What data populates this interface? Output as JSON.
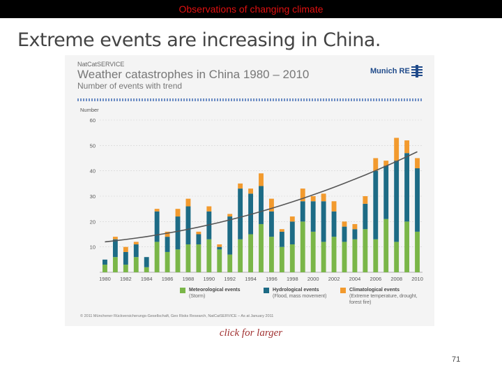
{
  "header": {
    "title": "Observations of changing climate"
  },
  "slide": {
    "heading": "Extreme events are increasing in China.",
    "link_text": "click for larger",
    "page_number": "71"
  },
  "figure": {
    "brand": "NatCatSERVICE",
    "title": "Weather catastrophes in China 1980 – 2010",
    "subtitle": "Number of events with trend",
    "logo_text": "Munich RE",
    "copyright": "© 2011 Münchener Rückversicherungs-Gesellschaft, Geo Risks Research, NatCatSERVICE – As at January 2011",
    "colors": {
      "meteorological": "#7ab648",
      "hydrological": "#1d6b85",
      "climatological": "#f29a2e",
      "trend": "#555555"
    }
  },
  "chart_data": {
    "type": "bar",
    "stacked": true,
    "title": "Weather catastrophes in China 1980 – 2010",
    "subtitle": "Number of events with trend",
    "ylabel": "Number",
    "ylim": [
      0,
      60
    ],
    "yticks": [
      10,
      20,
      30,
      40,
      50,
      60
    ],
    "categories": [
      1980,
      1981,
      1982,
      1983,
      1984,
      1985,
      1986,
      1987,
      1988,
      1989,
      1990,
      1991,
      1992,
      1993,
      1994,
      1995,
      1996,
      1997,
      1998,
      1999,
      2000,
      2001,
      2002,
      2003,
      2004,
      2005,
      2006,
      2007,
      2008,
      2009,
      2010
    ],
    "xtick_labels": [
      "1980",
      "1982",
      "1984",
      "1986",
      "1988",
      "1990",
      "1992",
      "1994",
      "1996",
      "1998",
      "2000",
      "2002",
      "2004",
      "2006",
      "2008",
      "2010"
    ],
    "series": [
      {
        "name": "Meteorological events",
        "note": "(Storm)",
        "values": [
          3,
          6,
          3,
          6,
          2,
          12,
          8,
          9,
          11,
          11,
          13,
          9,
          7,
          13,
          15,
          19,
          14,
          10,
          11,
          20,
          16,
          12,
          14,
          12,
          13,
          17,
          13,
          21,
          12,
          20,
          16
        ]
      },
      {
        "name": "Hydrological events",
        "note": "(Flood, mass movement)",
        "values": [
          2,
          7,
          5,
          5,
          4,
          12,
          6,
          13,
          15,
          4,
          11,
          1,
          15,
          20,
          16,
          15,
          10,
          6,
          9,
          8,
          12,
          16,
          10,
          6,
          4,
          10,
          27,
          21,
          32,
          27,
          25
        ]
      },
      {
        "name": "Climatological events",
        "note": "(Extreme temperature, drought, forest fire)",
        "values": [
          0,
          1,
          2,
          1,
          0,
          1,
          2,
          3,
          3,
          1,
          2,
          1,
          1,
          2,
          2,
          5,
          5,
          1,
          2,
          5,
          2,
          3,
          4,
          2,
          2,
          3,
          5,
          2,
          9,
          5,
          4
        ]
      }
    ],
    "trend": {
      "name": "Trend",
      "start": 12,
      "end": 47.5
    }
  }
}
